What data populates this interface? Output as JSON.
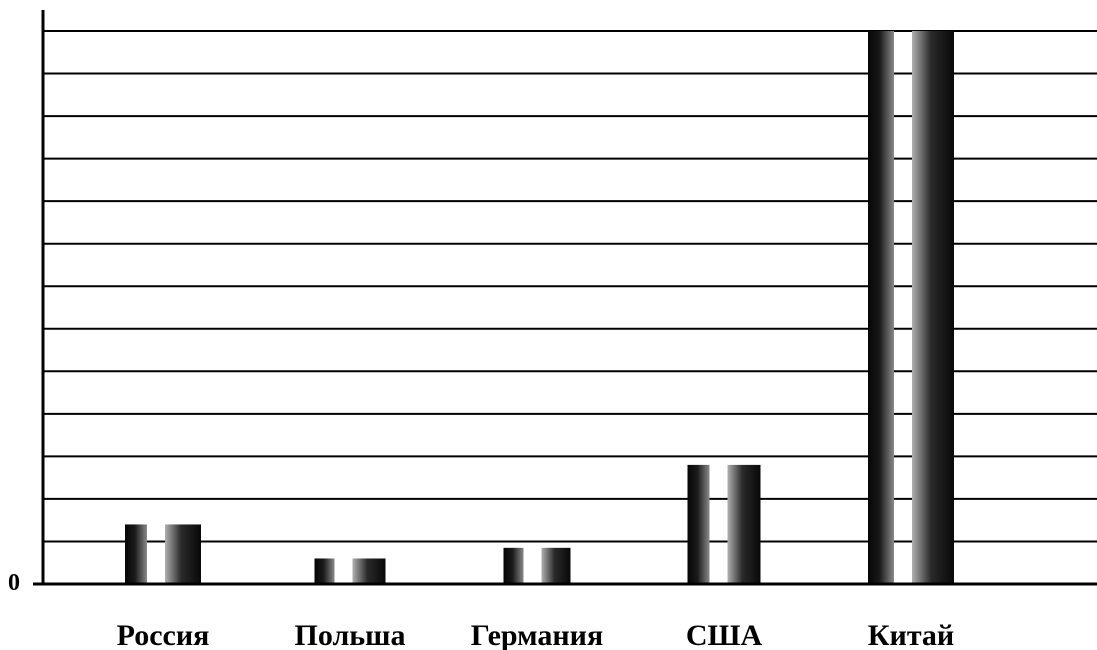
{
  "chart_data": {
    "type": "bar",
    "categories": [
      "Россия",
      "Польша",
      "Германия",
      "США",
      "Китай"
    ],
    "series": [
      {
        "values": [
          1.4,
          0.6,
          0.85,
          2.8,
          13
        ]
      },
      {
        "values": [
          1.4,
          0.6,
          0.85,
          2.8,
          13
        ]
      }
    ],
    "ylim": [
      0,
      13
    ],
    "zero_tick": "0",
    "grid": true,
    "legend": "none",
    "colors": {
      "bar": "#111111",
      "bar_light": "#9a9a9a",
      "grid": "#000000"
    }
  }
}
